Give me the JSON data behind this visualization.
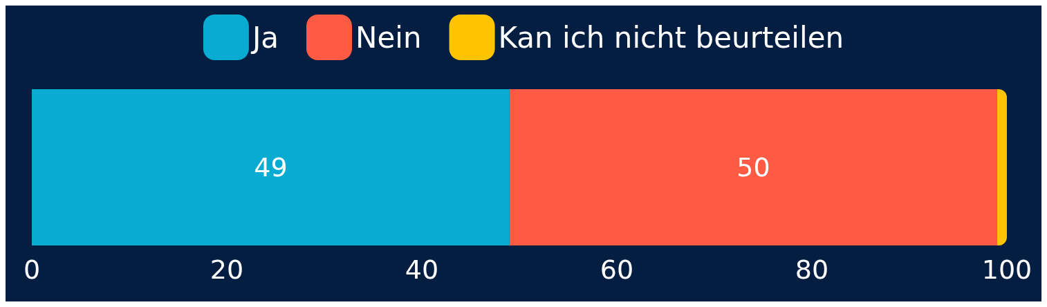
{
  "chart_data": {
    "type": "bar",
    "orientation": "horizontal",
    "stacked": true,
    "categories": [
      null
    ],
    "series": [
      {
        "name": "Ja",
        "color": "#08abd1",
        "values": [
          49
        ],
        "value_labels": [
          "49"
        ]
      },
      {
        "name": "Nein",
        "color": "#ff5a43",
        "values": [
          50
        ],
        "value_labels": [
          "50"
        ]
      },
      {
        "name": "Kan ich nicht beurteilen",
        "color": "#ffc400",
        "values": [
          1
        ],
        "value_labels": [
          null
        ]
      }
    ],
    "xlim": [
      0,
      100
    ],
    "xticks": [
      0,
      20,
      40,
      60,
      80,
      100
    ],
    "grid": false,
    "legend": "top",
    "tick_labels": "x"
  }
}
